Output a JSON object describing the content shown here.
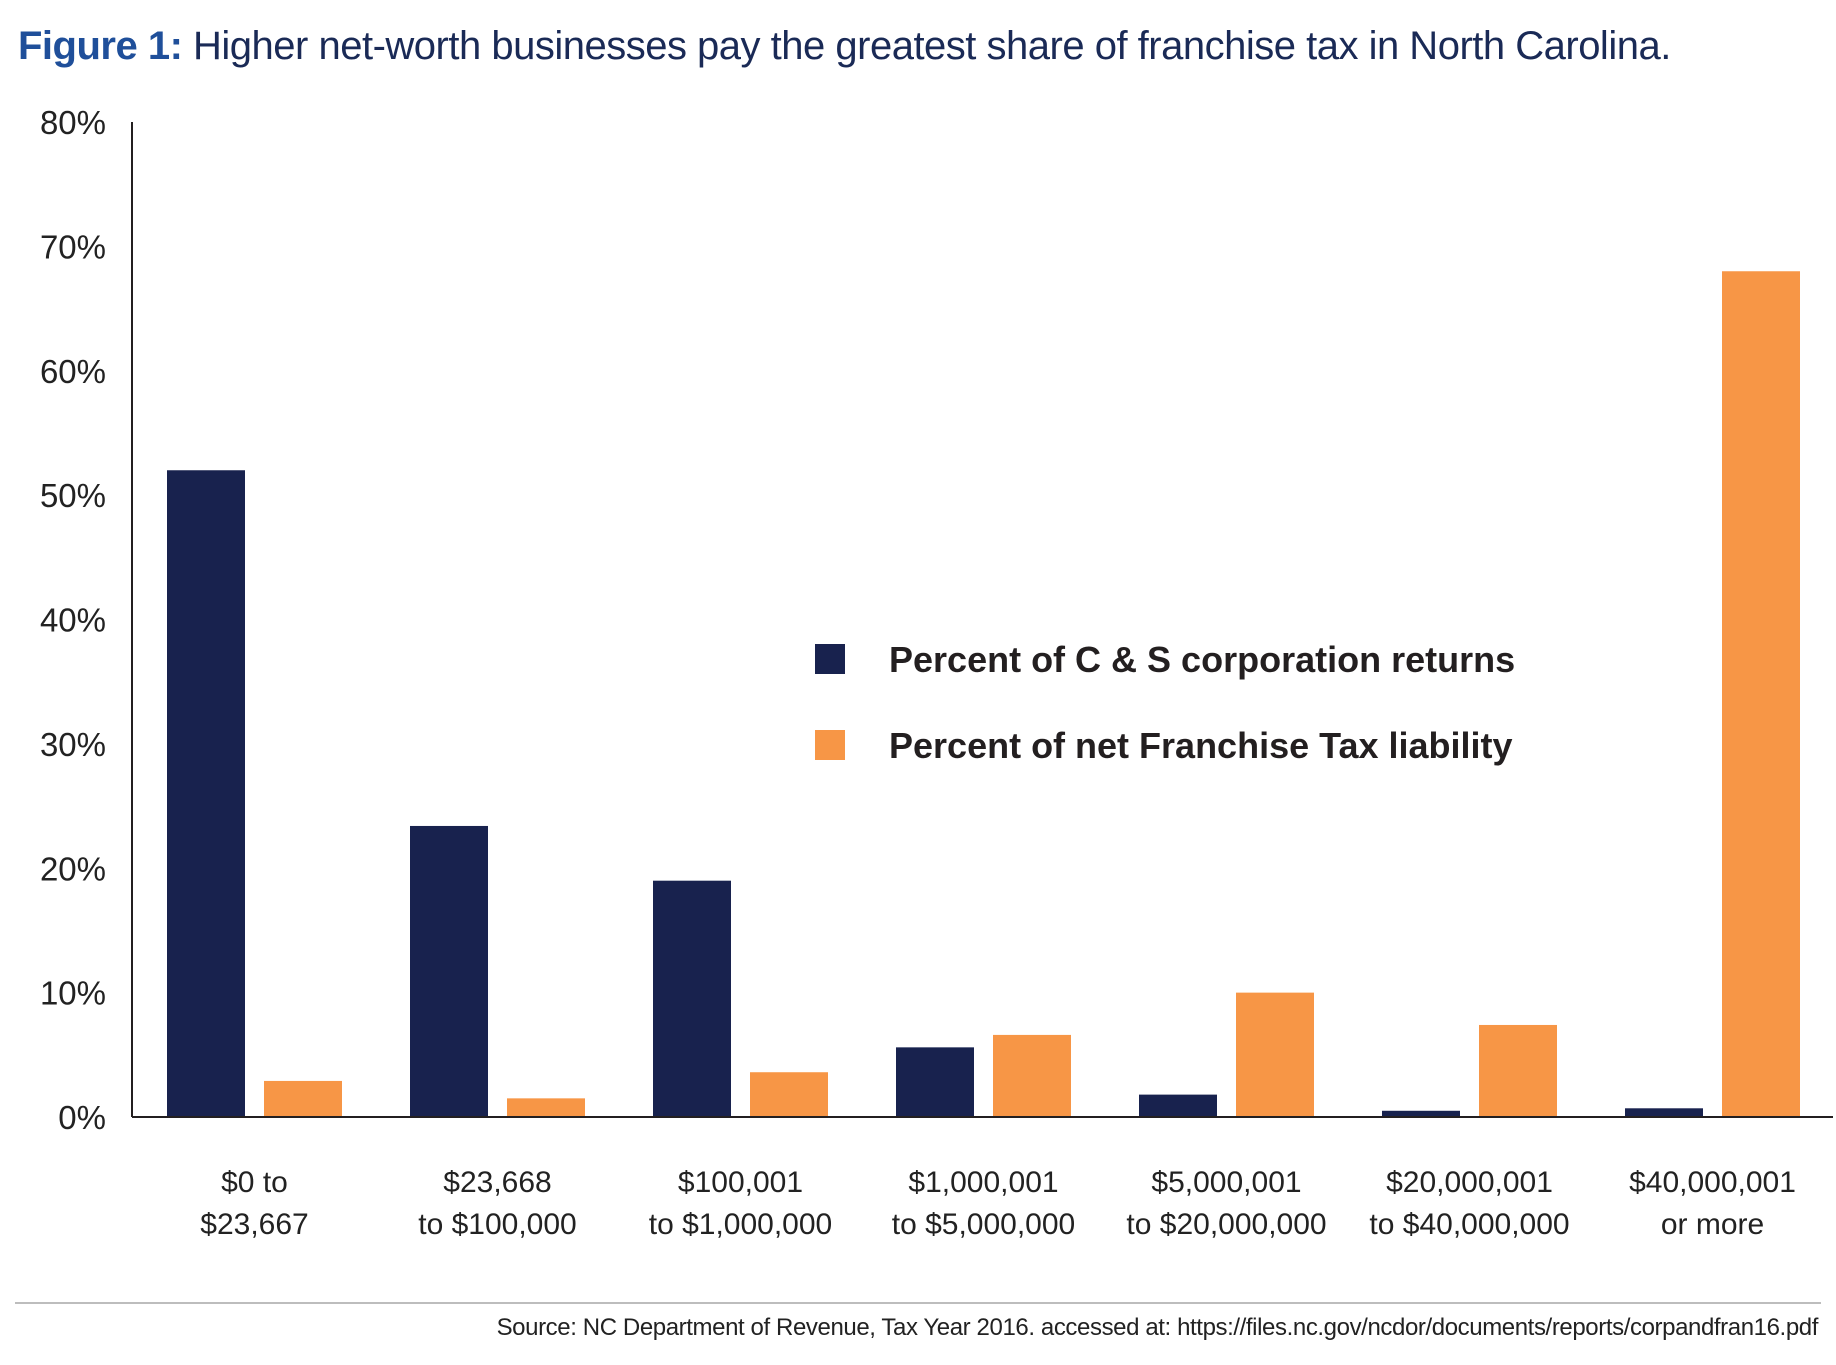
{
  "title": {
    "figure_label": "Figure 1:",
    "text": "Higher net-worth businesses pay the greatest share of franchise tax in North Carolina."
  },
  "colors": {
    "returns": "#18224e",
    "liability": "#f79646",
    "title_label": "#1f4f9a",
    "title_text": "#1a2a56"
  },
  "chart_data": {
    "type": "bar",
    "title": "Higher net-worth businesses pay the greatest share of franchise tax in North Carolina.",
    "categories": [
      [
        "$0 to",
        "$23,667"
      ],
      [
        "$23,668",
        "to $100,000"
      ],
      [
        "$100,001",
        "to $1,000,000"
      ],
      [
        "$1,000,001",
        "to $5,000,000"
      ],
      [
        "$5,000,001",
        "to $20,000,000"
      ],
      [
        "$20,000,001",
        "to $40,000,000"
      ],
      [
        "$40,000,001",
        "or more"
      ]
    ],
    "series": [
      {
        "name": "Percent of C & S corporation returns",
        "color": "#18224e",
        "values": [
          52,
          23.4,
          19,
          5.6,
          1.8,
          0.5,
          0.7
        ]
      },
      {
        "name": "Percent of net Franchise Tax liability",
        "color": "#f79646",
        "values": [
          2.9,
          1.5,
          3.6,
          6.6,
          10,
          7.4,
          68
        ]
      }
    ],
    "yticks": [
      "0%",
      "10%",
      "20%",
      "30%",
      "40%",
      "50%",
      "60%",
      "70%",
      "80%"
    ],
    "ylim": [
      0,
      80
    ],
    "xlabel": "",
    "ylabel": "",
    "grid": false,
    "legend_position": "center-right"
  },
  "source": "Source:  NC Department of Revenue, Tax Year 2016. accessed at: https://files.nc.gov/ncdor/documents/reports/corpandfran16.pdf"
}
